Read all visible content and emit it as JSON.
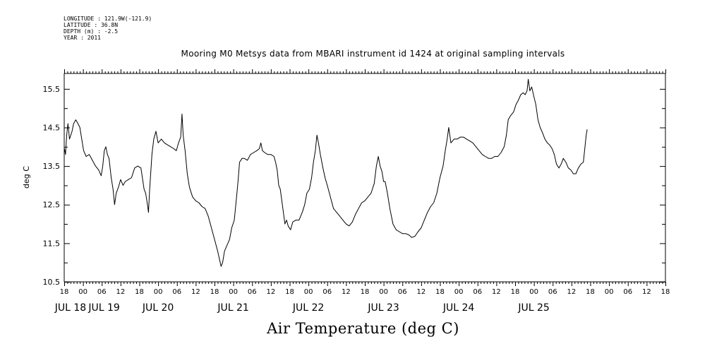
{
  "header": {
    "longitude": "LONGITUDE : 121.9W(-121.9)",
    "latitude": "LATITUDE : 36.8N",
    "depth": "DEPTH (m) : -2.5",
    "year": "YEAR : 2011"
  },
  "chart_data": {
    "type": "line",
    "title": "Mooring M0 Metsys data from MBARI instrument id 1424 at original sampling intervals",
    "xlabel": "Air Temperature (deg C)",
    "ylabel": "deg C",
    "ylim": [
      10.5,
      15.9
    ],
    "yticks": [
      10.5,
      11.5,
      12.5,
      13.5,
      14.5,
      15.5
    ],
    "ytick_labels": [
      "10.5",
      "11.5",
      "12.5",
      "13.5",
      "14.5",
      "15.5"
    ],
    "xlim_hours": [
      -6,
      186
    ],
    "x_hour_labels": [
      "18",
      "00",
      "06",
      "12",
      "18",
      "00",
      "06",
      "12",
      "18",
      "00",
      "06",
      "12",
      "18",
      "00",
      "06",
      "12",
      "18",
      "00",
      "06",
      "12",
      "18",
      "00",
      "06",
      "12",
      "18",
      "00",
      "06",
      "12",
      "18",
      "00",
      "06",
      "12",
      "18"
    ],
    "x_day_labels": [
      {
        "label": "JUL 18",
        "h": -6
      },
      {
        "label": "JUL 19",
        "h": 0
      },
      {
        "label": "JUL 20",
        "h": 24
      },
      {
        "label": "JUL 21",
        "h": 48
      },
      {
        "label": "JUL 22",
        "h": 72
      },
      {
        "label": "JUL 23",
        "h": 96
      },
      {
        "label": "JUL 24",
        "h": 120
      },
      {
        "label": "JUL 25",
        "h": 144
      }
    ],
    "grid": false,
    "series": [
      {
        "points": [
          [
            -5.9,
            13.95
          ],
          [
            -5.6,
            13.8
          ],
          [
            -5.2,
            14.3
          ],
          [
            -4.8,
            14.6
          ],
          [
            -4.3,
            14.2
          ],
          [
            -3.5,
            14.4
          ],
          [
            -3,
            14.6
          ],
          [
            -2.3,
            14.7
          ],
          [
            -1.6,
            14.6
          ],
          [
            -1,
            14.5
          ],
          [
            -0.2,
            14.1
          ],
          [
            0.2,
            13.9
          ],
          [
            1,
            13.75
          ],
          [
            2,
            13.8
          ],
          [
            3,
            13.65
          ],
          [
            4,
            13.5
          ],
          [
            5,
            13.4
          ],
          [
            5.8,
            13.25
          ],
          [
            6.3,
            13.5
          ],
          [
            6.8,
            13.9
          ],
          [
            7.3,
            14.0
          ],
          [
            7.8,
            13.8
          ],
          [
            8.3,
            13.7
          ],
          [
            9,
            13.2
          ],
          [
            9.6,
            12.9
          ],
          [
            10.1,
            12.5
          ],
          [
            10.6,
            12.8
          ],
          [
            11.3,
            12.95
          ],
          [
            12,
            13.15
          ],
          [
            12.8,
            13.0
          ],
          [
            13.5,
            13.1
          ],
          [
            14.5,
            13.15
          ],
          [
            15.5,
            13.2
          ],
          [
            16.5,
            13.45
          ],
          [
            17.5,
            13.5
          ],
          [
            18.5,
            13.45
          ],
          [
            19.5,
            12.9
          ],
          [
            20,
            12.8
          ],
          [
            20.6,
            12.5
          ],
          [
            20.9,
            12.3
          ],
          [
            21.3,
            12.9
          ],
          [
            22,
            13.8
          ],
          [
            22.6,
            14.2
          ],
          [
            23.3,
            14.4
          ],
          [
            24,
            14.1
          ],
          [
            25,
            14.2
          ],
          [
            26,
            14.1
          ],
          [
            27,
            14.05
          ],
          [
            28,
            14.0
          ],
          [
            29,
            13.95
          ],
          [
            29.8,
            13.9
          ],
          [
            30.5,
            14.1
          ],
          [
            31.2,
            14.25
          ],
          [
            31.6,
            14.85
          ],
          [
            32,
            14.3
          ],
          [
            32.6,
            13.9
          ],
          [
            33.3,
            13.3
          ],
          [
            34,
            12.95
          ],
          [
            35,
            12.7
          ],
          [
            36,
            12.6
          ],
          [
            37,
            12.55
          ],
          [
            38,
            12.45
          ],
          [
            39,
            12.4
          ],
          [
            40,
            12.2
          ],
          [
            41,
            11.9
          ],
          [
            42,
            11.6
          ],
          [
            43,
            11.3
          ],
          [
            43.7,
            11.05
          ],
          [
            44.1,
            10.9
          ],
          [
            44.6,
            11.0
          ],
          [
            45.2,
            11.3
          ],
          [
            46,
            11.45
          ],
          [
            46.8,
            11.6
          ],
          [
            47.5,
            11.9
          ],
          [
            48.3,
            12.1
          ],
          [
            48.8,
            12.5
          ],
          [
            49.5,
            13.1
          ],
          [
            50,
            13.6
          ],
          [
            50.8,
            13.7
          ],
          [
            51.5,
            13.7
          ],
          [
            52.5,
            13.65
          ],
          [
            53.5,
            13.8
          ],
          [
            54.5,
            13.85
          ],
          [
            55.5,
            13.9
          ],
          [
            56.3,
            13.95
          ],
          [
            56.8,
            14.1
          ],
          [
            57.3,
            13.9
          ],
          [
            58,
            13.85
          ],
          [
            59,
            13.8
          ],
          [
            60,
            13.8
          ],
          [
            61,
            13.75
          ],
          [
            61.5,
            13.6
          ],
          [
            62,
            13.4
          ],
          [
            62.5,
            13.0
          ],
          [
            63,
            12.9
          ],
          [
            63.5,
            12.6
          ],
          [
            64,
            12.3
          ],
          [
            64.5,
            12.0
          ],
          [
            65,
            12.1
          ],
          [
            65.5,
            11.95
          ],
          [
            66.3,
            11.85
          ],
          [
            67,
            12.05
          ],
          [
            68,
            12.1
          ],
          [
            69,
            12.1
          ],
          [
            70,
            12.3
          ],
          [
            70.8,
            12.5
          ],
          [
            71.5,
            12.8
          ],
          [
            72.3,
            12.9
          ],
          [
            73,
            13.2
          ],
          [
            73.6,
            13.6
          ],
          [
            74.2,
            13.9
          ],
          [
            74.7,
            14.3
          ],
          [
            75.2,
            14.1
          ],
          [
            75.8,
            13.8
          ],
          [
            76.5,
            13.5
          ],
          [
            77.3,
            13.2
          ],
          [
            78,
            13.0
          ],
          [
            79,
            12.7
          ],
          [
            80,
            12.4
          ],
          [
            81,
            12.3
          ],
          [
            82,
            12.2
          ],
          [
            83,
            12.1
          ],
          [
            84,
            12.0
          ],
          [
            85,
            11.95
          ],
          [
            86,
            12.05
          ],
          [
            87,
            12.25
          ],
          [
            88,
            12.4
          ],
          [
            89,
            12.55
          ],
          [
            90,
            12.6
          ],
          [
            91,
            12.7
          ],
          [
            92,
            12.8
          ],
          [
            93,
            13.05
          ],
          [
            93.7,
            13.5
          ],
          [
            94.3,
            13.75
          ],
          [
            94.9,
            13.5
          ],
          [
            95.5,
            13.35
          ],
          [
            96,
            13.1
          ],
          [
            96.5,
            13.1
          ],
          [
            97.2,
            12.8
          ],
          [
            98,
            12.4
          ],
          [
            99,
            12.0
          ],
          [
            100,
            11.85
          ],
          [
            101,
            11.8
          ],
          [
            102,
            11.75
          ],
          [
            103,
            11.75
          ],
          [
            104,
            11.72
          ],
          [
            105,
            11.65
          ],
          [
            106,
            11.68
          ],
          [
            107,
            11.8
          ],
          [
            108,
            11.9
          ],
          [
            109,
            12.1
          ],
          [
            110,
            12.3
          ],
          [
            111,
            12.45
          ],
          [
            112,
            12.55
          ],
          [
            113,
            12.8
          ],
          [
            114,
            13.2
          ],
          [
            115,
            13.5
          ],
          [
            115.7,
            13.9
          ],
          [
            116.3,
            14.2
          ],
          [
            116.8,
            14.5
          ],
          [
            117.5,
            14.1
          ],
          [
            118.5,
            14.2
          ],
          [
            119.5,
            14.2
          ],
          [
            120.5,
            14.25
          ],
          [
            121.5,
            14.25
          ],
          [
            122.5,
            14.2
          ],
          [
            123.5,
            14.15
          ],
          [
            124.5,
            14.1
          ],
          [
            125.5,
            14.0
          ],
          [
            126.5,
            13.9
          ],
          [
            127.5,
            13.8
          ],
          [
            128.5,
            13.75
          ],
          [
            129.5,
            13.7
          ],
          [
            130.5,
            13.7
          ],
          [
            131.5,
            13.75
          ],
          [
            132.5,
            13.75
          ],
          [
            133.5,
            13.85
          ],
          [
            134.5,
            14.0
          ],
          [
            135.2,
            14.3
          ],
          [
            135.8,
            14.7
          ],
          [
            136.5,
            14.8
          ],
          [
            137.5,
            14.9
          ],
          [
            138.3,
            15.1
          ],
          [
            139,
            15.2
          ],
          [
            139.8,
            15.35
          ],
          [
            140.6,
            15.4
          ],
          [
            141.2,
            15.35
          ],
          [
            141.8,
            15.45
          ],
          [
            142.2,
            15.75
          ],
          [
            142.7,
            15.45
          ],
          [
            143.3,
            15.55
          ],
          [
            144,
            15.3
          ],
          [
            144.6,
            15.1
          ],
          [
            145.3,
            14.7
          ],
          [
            146,
            14.5
          ],
          [
            146.8,
            14.35
          ],
          [
            147.5,
            14.2
          ],
          [
            148.3,
            14.1
          ],
          [
            149,
            14.05
          ],
          [
            149.8,
            13.95
          ],
          [
            150.5,
            13.8
          ],
          [
            151.2,
            13.55
          ],
          [
            152,
            13.45
          ],
          [
            152.7,
            13.55
          ],
          [
            153.4,
            13.7
          ],
          [
            154.2,
            13.6
          ],
          [
            155,
            13.45
          ],
          [
            155.8,
            13.4
          ],
          [
            156.6,
            13.3
          ],
          [
            157.4,
            13.3
          ],
          [
            158.2,
            13.45
          ],
          [
            159,
            13.55
          ],
          [
            159.8,
            13.6
          ],
          [
            160.3,
            14.0
          ],
          [
            160.7,
            14.3
          ],
          [
            161,
            14.45
          ]
        ]
      }
    ]
  }
}
